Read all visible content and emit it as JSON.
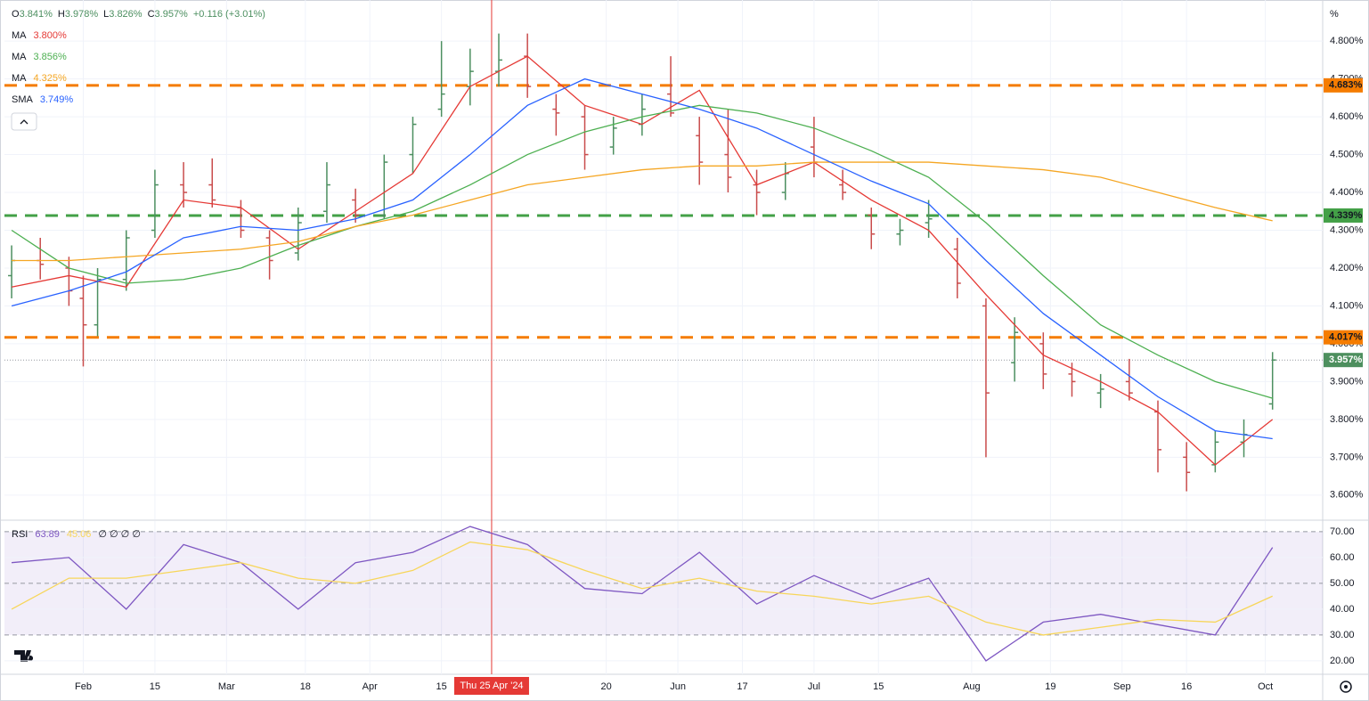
{
  "chart_data": {
    "type": "ohlc",
    "header": {
      "items": [
        {
          "prefix": "O",
          "text": "3.841%"
        },
        {
          "prefix": "H",
          "text": "3.978%"
        },
        {
          "prefix": "L",
          "text": "3.826%"
        },
        {
          "prefix": "C",
          "text": "3.957%"
        }
      ],
      "change": "+0.116 (+3.01%)"
    },
    "unit": "%",
    "xlim": [
      -11,
      173
    ],
    "xticks": [
      {
        "value": 0,
        "label": "Feb"
      },
      {
        "value": 10,
        "label": "15"
      },
      {
        "value": 20,
        "label": "Mar"
      },
      {
        "value": 31,
        "label": "18"
      },
      {
        "value": 40,
        "label": "Apr"
      },
      {
        "value": 50,
        "label": "15"
      },
      {
        "value": 73,
        "label": "20"
      },
      {
        "value": 83,
        "label": "Jun"
      },
      {
        "value": 92,
        "label": "17"
      },
      {
        "value": 102,
        "label": "Jul"
      },
      {
        "value": 111,
        "label": "15"
      },
      {
        "value": 124,
        "label": "Aug"
      },
      {
        "value": 135,
        "label": "19"
      },
      {
        "value": 145,
        "label": "Sep"
      },
      {
        "value": 154,
        "label": "16"
      },
      {
        "value": 165,
        "label": "Oct"
      }
    ],
    "ylim": [
      3.536,
      4.838
    ],
    "yticks": [
      {
        "value": 3.6,
        "label": "3.600%"
      },
      {
        "value": 3.7,
        "label": "3.700%"
      },
      {
        "value": 3.8,
        "label": "3.800%"
      },
      {
        "value": 3.9,
        "label": "3.900%"
      },
      {
        "value": 4.0,
        "label": "4.000%"
      },
      {
        "value": 4.1,
        "label": "4.100%"
      },
      {
        "value": 4.2,
        "label": "4.200%"
      },
      {
        "value": 4.3,
        "label": "4.300%"
      },
      {
        "value": 4.4,
        "label": "4.400%"
      },
      {
        "value": 4.5,
        "label": "4.500%"
      },
      {
        "value": 4.6,
        "label": "4.600%"
      },
      {
        "value": 4.7,
        "label": "4.700%"
      },
      {
        "value": 4.8,
        "label": "4.800%"
      }
    ],
    "crosshair": {
      "x": 57,
      "label": "Thu 25 Apr '24",
      "color": "#e53935"
    },
    "bars": {
      "x": [
        -10,
        -6,
        -2,
        0,
        2,
        6,
        10,
        14,
        18,
        22,
        26,
        30,
        34,
        38,
        42,
        46,
        50,
        54,
        58,
        62,
        66,
        70,
        74,
        78,
        82,
        86,
        90,
        94,
        98,
        102,
        106,
        110,
        114,
        118,
        122,
        126,
        130,
        134,
        138,
        142,
        146,
        150,
        154,
        158,
        162,
        166
      ],
      "open": [
        4.18,
        4.22,
        4.2,
        4.12,
        4.05,
        4.17,
        4.3,
        4.42,
        4.42,
        4.36,
        4.28,
        4.24,
        4.35,
        4.38,
        4.34,
        4.5,
        4.62,
        4.68,
        4.72,
        4.76,
        4.62,
        4.6,
        4.52,
        4.58,
        4.66,
        4.55,
        4.5,
        4.42,
        4.4,
        4.52,
        4.42,
        4.34,
        4.29,
        4.32,
        4.25,
        4.1,
        3.95,
        4.0,
        3.92,
        3.87,
        3.9,
        3.82,
        3.7,
        3.68,
        3.74,
        3.841
      ],
      "high": [
        4.26,
        4.28,
        4.23,
        4.18,
        4.2,
        4.3,
        4.46,
        4.48,
        4.49,
        4.38,
        4.3,
        4.36,
        4.48,
        4.41,
        4.5,
        4.6,
        4.8,
        4.78,
        4.82,
        4.82,
        4.66,
        4.63,
        4.6,
        4.66,
        4.76,
        4.6,
        4.62,
        4.46,
        4.48,
        4.6,
        4.46,
        4.36,
        4.33,
        4.38,
        4.28,
        4.12,
        4.07,
        4.03,
        3.95,
        3.92,
        3.96,
        3.85,
        3.74,
        3.77,
        3.8,
        3.978
      ],
      "low": [
        4.12,
        4.17,
        4.1,
        3.94,
        4.02,
        4.14,
        4.28,
        4.36,
        4.36,
        4.28,
        4.17,
        4.22,
        4.32,
        4.32,
        4.33,
        4.45,
        4.6,
        4.63,
        4.68,
        4.65,
        4.55,
        4.46,
        4.5,
        4.55,
        4.6,
        4.42,
        4.4,
        4.34,
        4.38,
        4.44,
        4.38,
        4.25,
        4.26,
        4.28,
        4.12,
        3.7,
        3.9,
        3.88,
        3.86,
        3.83,
        3.85,
        3.66,
        3.61,
        3.66,
        3.7,
        3.826
      ],
      "close": [
        4.22,
        4.21,
        4.14,
        4.05,
        4.17,
        4.28,
        4.42,
        4.4,
        4.38,
        4.3,
        4.22,
        4.32,
        4.42,
        4.34,
        4.48,
        4.58,
        4.66,
        4.72,
        4.75,
        4.68,
        4.61,
        4.5,
        4.57,
        4.62,
        4.61,
        4.48,
        4.44,
        4.4,
        4.45,
        4.48,
        4.4,
        4.29,
        4.3,
        4.33,
        4.16,
        3.87,
        4.03,
        3.92,
        3.9,
        3.88,
        3.87,
        3.72,
        3.66,
        3.74,
        3.76,
        3.957
      ],
      "up_color": "#4c8f60",
      "down_color": "#c94c4c"
    },
    "line_x": [
      -10,
      -2,
      6,
      14,
      22,
      30,
      38,
      46,
      54,
      62,
      70,
      78,
      86,
      94,
      102,
      110,
      118,
      126,
      134,
      142,
      150,
      158,
      166
    ],
    "lines": [
      {
        "name": "MA",
        "value_label": "3.800%",
        "color": "#e53935",
        "values": [
          4.15,
          4.18,
          4.15,
          4.38,
          4.36,
          4.25,
          4.35,
          4.45,
          4.68,
          4.76,
          4.63,
          4.58,
          4.67,
          4.42,
          4.48,
          4.38,
          4.3,
          4.13,
          3.97,
          3.9,
          3.82,
          3.68,
          3.8
        ]
      },
      {
        "name": "MA",
        "value_label": "3.856%",
        "color": "#4caf50",
        "values": [
          4.3,
          4.2,
          4.16,
          4.17,
          4.2,
          4.26,
          4.31,
          4.35,
          4.42,
          4.5,
          4.56,
          4.6,
          4.63,
          4.61,
          4.57,
          4.51,
          4.44,
          4.32,
          4.18,
          4.05,
          3.97,
          3.9,
          3.856
        ]
      },
      {
        "name": "MA",
        "value_label": "4.325%",
        "color": "#f5a623",
        "values": [
          4.22,
          4.22,
          4.23,
          4.24,
          4.25,
          4.27,
          4.31,
          4.34,
          4.38,
          4.42,
          4.44,
          4.46,
          4.47,
          4.47,
          4.48,
          4.48,
          4.48,
          4.47,
          4.46,
          4.44,
          4.4,
          4.36,
          4.325
        ]
      },
      {
        "name": "SMA",
        "value_label": "3.749%",
        "color": "#2962ff",
        "values": [
          4.1,
          4.14,
          4.19,
          4.28,
          4.31,
          4.3,
          4.33,
          4.38,
          4.5,
          4.63,
          4.7,
          4.66,
          4.62,
          4.57,
          4.5,
          4.43,
          4.37,
          4.22,
          4.08,
          3.97,
          3.86,
          3.77,
          3.749
        ]
      }
    ],
    "levels": [
      {
        "value": 4.683,
        "label": "4.683%",
        "color": "#f57c00"
      },
      {
        "value": 4.339,
        "label": "4.339%",
        "color": "#43a047"
      },
      {
        "value": 4.017,
        "label": "4.017%",
        "color": "#f57c00"
      }
    ],
    "last": {
      "value": 3.957,
      "label": "3.957%",
      "color": "#4d8f5e"
    },
    "rsi": {
      "name": "RSI",
      "value_label": "63.89",
      "ma_label": "45.06",
      "extra": "∅ ∅ ∅ ∅",
      "ylim": [
        14.8,
        74.1
      ],
      "yticks": [
        {
          "value": 20,
          "label": "20.00"
        },
        {
          "value": 30,
          "label": "30.00"
        },
        {
          "value": 40,
          "label": "40.00"
        },
        {
          "value": 50,
          "label": "50.00"
        },
        {
          "value": 60,
          "label": "60.00"
        },
        {
          "value": 70,
          "label": "70.00"
        }
      ],
      "band": [
        30,
        70
      ],
      "color": "#7e57c2",
      "ma_color": "#f7d65a",
      "values": [
        58,
        60,
        40,
        65,
        58,
        40,
        58,
        62,
        72,
        65,
        48,
        46,
        62,
        42,
        53,
        44,
        52,
        20,
        35,
        38,
        34,
        30,
        63.89
      ],
      "ma": [
        40,
        52,
        52,
        55,
        58,
        52,
        50,
        55,
        66,
        63,
        55,
        48,
        52,
        47,
        45,
        42,
        45,
        35,
        30,
        33,
        36,
        35,
        45.06
      ]
    }
  }
}
